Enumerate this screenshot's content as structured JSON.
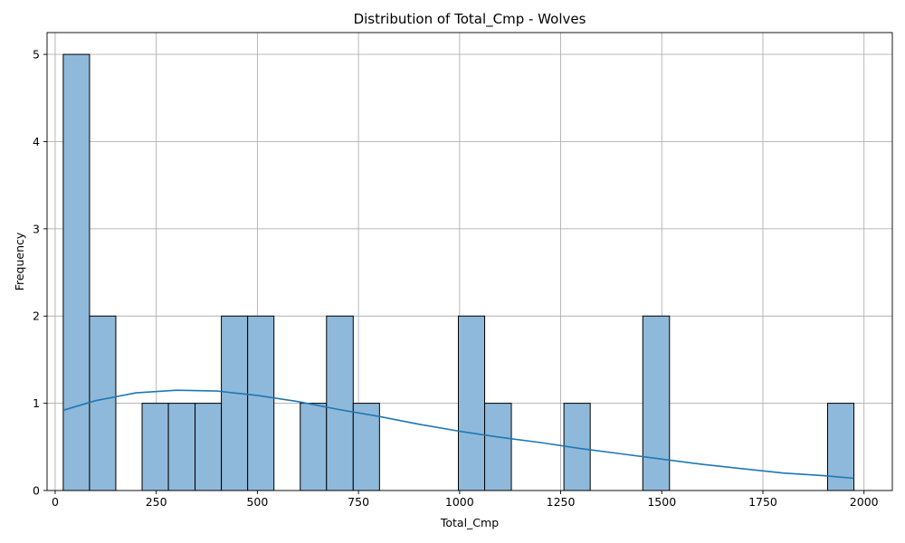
{
  "chart_data": {
    "type": "bar",
    "title": "Distribution of Total_Cmp - Wolves",
    "xlabel": "Total_Cmp",
    "ylabel": "Frequency",
    "xlim": [
      -20,
      2070
    ],
    "ylim": [
      0,
      5.25
    ],
    "x_ticks": [
      0,
      250,
      500,
      750,
      1000,
      1250,
      1500,
      1750,
      2000
    ],
    "y_ticks": [
      0,
      1,
      2,
      3,
      4,
      5
    ],
    "grid": true,
    "bins": [
      {
        "x0": 20,
        "x1": 85,
        "count": 5
      },
      {
        "x0": 85,
        "x1": 150,
        "count": 2
      },
      {
        "x0": 150,
        "x1": 215,
        "count": 0
      },
      {
        "x0": 215,
        "x1": 280,
        "count": 1
      },
      {
        "x0": 280,
        "x1": 346,
        "count": 1
      },
      {
        "x0": 346,
        "x1": 411,
        "count": 1
      },
      {
        "x0": 411,
        "x1": 476,
        "count": 2
      },
      {
        "x0": 476,
        "x1": 541,
        "count": 2
      },
      {
        "x0": 541,
        "x1": 606,
        "count": 0
      },
      {
        "x0": 606,
        "x1": 671,
        "count": 1
      },
      {
        "x0": 671,
        "x1": 737,
        "count": 2
      },
      {
        "x0": 737,
        "x1": 802,
        "count": 1
      },
      {
        "x0": 802,
        "x1": 867,
        "count": 0
      },
      {
        "x0": 867,
        "x1": 932,
        "count": 0
      },
      {
        "x0": 932,
        "x1": 997,
        "count": 0
      },
      {
        "x0": 997,
        "x1": 1062,
        "count": 2
      },
      {
        "x0": 1062,
        "x1": 1128,
        "count": 1
      },
      {
        "x0": 1128,
        "x1": 1193,
        "count": 0
      },
      {
        "x0": 1193,
        "x1": 1258,
        "count": 0
      },
      {
        "x0": 1258,
        "x1": 1323,
        "count": 1
      },
      {
        "x0": 1323,
        "x1": 1388,
        "count": 0
      },
      {
        "x0": 1388,
        "x1": 1453,
        "count": 0
      },
      {
        "x0": 1453,
        "x1": 1519,
        "count": 2
      },
      {
        "x0": 1519,
        "x1": 1584,
        "count": 0
      },
      {
        "x0": 1584,
        "x1": 1649,
        "count": 0
      },
      {
        "x0": 1649,
        "x1": 1714,
        "count": 0
      },
      {
        "x0": 1714,
        "x1": 1779,
        "count": 0
      },
      {
        "x0": 1779,
        "x1": 1844,
        "count": 0
      },
      {
        "x0": 1844,
        "x1": 1910,
        "count": 0
      },
      {
        "x0": 1910,
        "x1": 1975,
        "count": 1
      }
    ],
    "kde": {
      "x": [
        20,
        100,
        200,
        300,
        400,
        500,
        600,
        700,
        800,
        900,
        1000,
        1100,
        1200,
        1300,
        1400,
        1500,
        1600,
        1700,
        1800,
        1900,
        1975
      ],
      "y": [
        0.92,
        1.03,
        1.12,
        1.15,
        1.14,
        1.09,
        1.02,
        0.93,
        0.85,
        0.76,
        0.68,
        0.61,
        0.55,
        0.48,
        0.42,
        0.36,
        0.3,
        0.25,
        0.2,
        0.17,
        0.14
      ]
    },
    "colors": {
      "bar_fill": "#8fb9da",
      "bar_edge": "#000000",
      "kde_line": "#1f77b4",
      "grid": "#b0b0b0"
    }
  }
}
